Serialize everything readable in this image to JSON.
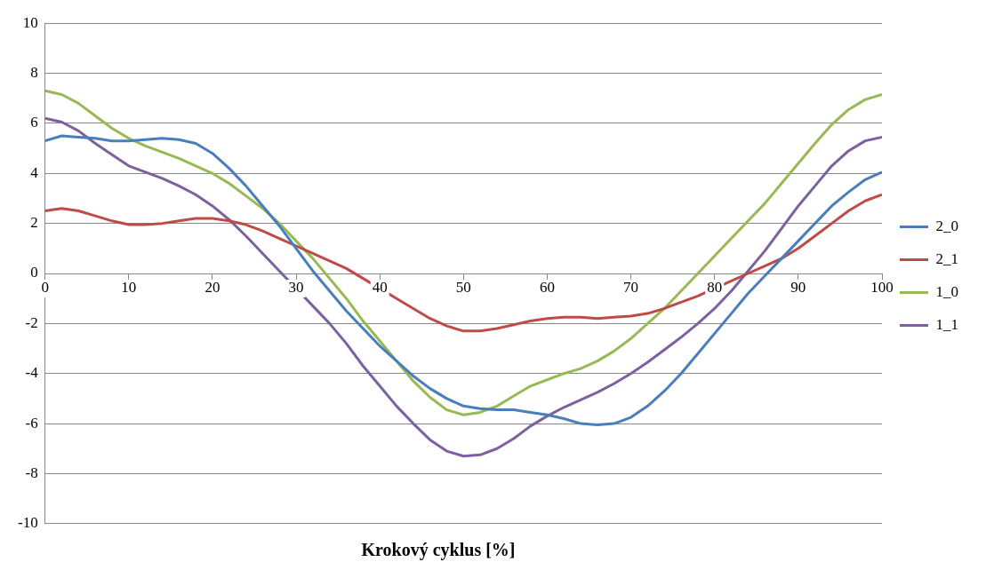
{
  "chart_data": {
    "type": "line",
    "xlabel": "Krokový cyklus [%]",
    "x": [
      0,
      2,
      4,
      6,
      8,
      10,
      12,
      14,
      16,
      18,
      20,
      22,
      24,
      26,
      28,
      30,
      32,
      34,
      36,
      38,
      40,
      42,
      44,
      46,
      48,
      50,
      52,
      54,
      56,
      58,
      60,
      62,
      64,
      66,
      68,
      70,
      72,
      74,
      76,
      78,
      80,
      82,
      84,
      86,
      88,
      90,
      92,
      94,
      96,
      98,
      100
    ],
    "series": [
      {
        "name": "2_0",
        "color": "#4a7ebb",
        "values": [
          5.3,
          5.5,
          5.45,
          5.4,
          5.3,
          5.3,
          5.35,
          5.4,
          5.35,
          5.2,
          4.8,
          4.2,
          3.5,
          2.7,
          1.9,
          1.0,
          0.1,
          -0.7,
          -1.5,
          -2.2,
          -2.9,
          -3.5,
          -4.1,
          -4.6,
          -5.0,
          -5.3,
          -5.4,
          -5.45,
          -5.45,
          -5.55,
          -5.65,
          -5.8,
          -6.0,
          -6.05,
          -6.0,
          -5.75,
          -5.3,
          -4.7,
          -4.0,
          -3.2,
          -2.4,
          -1.6,
          -0.8,
          -0.1,
          0.6,
          1.3,
          2.0,
          2.7,
          3.25,
          3.75,
          4.05
        ]
      },
      {
        "name": "2_1",
        "color": "#be4b48",
        "values": [
          2.5,
          2.6,
          2.5,
          2.3,
          2.1,
          1.95,
          1.95,
          2.0,
          2.1,
          2.2,
          2.2,
          2.1,
          1.95,
          1.7,
          1.4,
          1.1,
          0.8,
          0.5,
          0.2,
          -0.2,
          -0.6,
          -1.0,
          -1.4,
          -1.8,
          -2.1,
          -2.3,
          -2.3,
          -2.2,
          -2.05,
          -1.9,
          -1.8,
          -1.75,
          -1.75,
          -1.8,
          -1.75,
          -1.7,
          -1.6,
          -1.4,
          -1.15,
          -0.9,
          -0.6,
          -0.3,
          0.0,
          0.3,
          0.6,
          1.0,
          1.5,
          2.0,
          2.5,
          2.9,
          3.15
        ]
      },
      {
        "name": "1_0",
        "color": "#98b954",
        "values": [
          7.3,
          7.15,
          6.8,
          6.3,
          5.8,
          5.4,
          5.1,
          4.85,
          4.6,
          4.3,
          4.0,
          3.6,
          3.1,
          2.6,
          2.0,
          1.3,
          0.6,
          -0.2,
          -1.0,
          -1.9,
          -2.7,
          -3.5,
          -4.3,
          -4.95,
          -5.45,
          -5.65,
          -5.55,
          -5.3,
          -4.9,
          -4.5,
          -4.25,
          -4.0,
          -3.8,
          -3.5,
          -3.1,
          -2.6,
          -2.0,
          -1.4,
          -0.7,
          0.0,
          0.7,
          1.4,
          2.1,
          2.8,
          3.6,
          4.4,
          5.2,
          5.95,
          6.55,
          6.95,
          7.15
        ]
      },
      {
        "name": "1_1",
        "color": "#7d60a0",
        "values": [
          6.2,
          6.05,
          5.7,
          5.2,
          4.75,
          4.3,
          4.05,
          3.8,
          3.5,
          3.15,
          2.7,
          2.15,
          1.5,
          0.8,
          0.1,
          -0.6,
          -1.3,
          -2.0,
          -2.8,
          -3.7,
          -4.5,
          -5.3,
          -6.0,
          -6.65,
          -7.1,
          -7.3,
          -7.25,
          -7.0,
          -6.6,
          -6.1,
          -5.7,
          -5.35,
          -5.05,
          -4.75,
          -4.4,
          -4.0,
          -3.55,
          -3.05,
          -2.55,
          -2.0,
          -1.4,
          -0.7,
          0.1,
          0.9,
          1.8,
          2.7,
          3.5,
          4.3,
          4.9,
          5.3,
          5.45
        ]
      }
    ],
    "xlim": [
      0,
      100
    ],
    "xticks": [
      0,
      10,
      20,
      30,
      40,
      50,
      60,
      70,
      80,
      90,
      100
    ],
    "ylim": [
      -10,
      10
    ],
    "yticks": [
      -10,
      -8,
      -6,
      -4,
      -2,
      0,
      2,
      4,
      6,
      8,
      10
    ],
    "grid": "y",
    "legend": "right",
    "marker": "none",
    "line_style": "solid"
  }
}
